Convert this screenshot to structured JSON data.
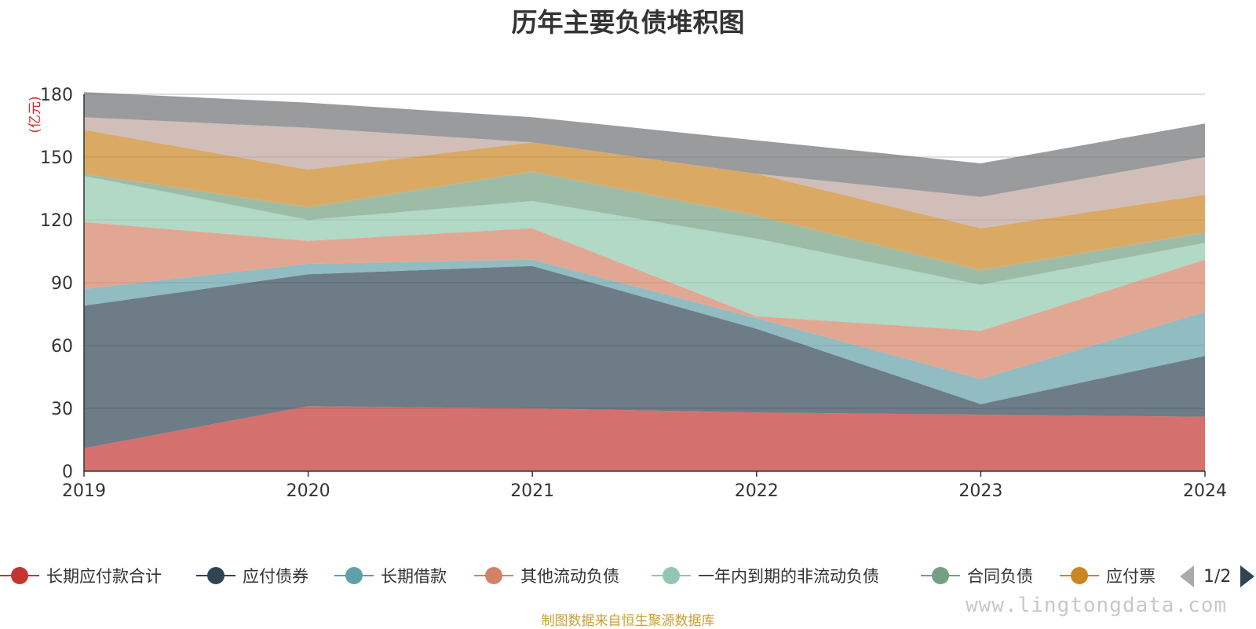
{
  "chart_data": {
    "type": "area",
    "title": "历年主要负债堆积图",
    "unit": "(亿元)",
    "categories": [
      "2019",
      "2020",
      "2021",
      "2022",
      "2023",
      "2024"
    ],
    "ylim": [
      0,
      180
    ],
    "yticks": [
      0,
      30,
      60,
      90,
      120,
      150,
      180
    ],
    "stacked": true,
    "grid": true,
    "series": [
      {
        "name": "长期应付款合计",
        "color": "#c23531",
        "values": [
          11,
          31,
          30,
          28,
          27,
          26
        ]
      },
      {
        "name": "应付债券",
        "color": "#2f4554",
        "values": [
          68,
          63,
          68,
          40,
          5,
          29
        ]
      },
      {
        "name": "长期借款",
        "color": "#61a0a8",
        "values": [
          8,
          5,
          3,
          5,
          12,
          21
        ]
      },
      {
        "name": "其他流动负债",
        "color": "#d48265",
        "values": [
          32,
          11,
          15,
          1,
          23,
          25
        ]
      },
      {
        "name": "一年内到期的非流动负债",
        "color": "#91c7ae",
        "values": [
          22,
          10,
          13,
          37,
          22,
          8
        ]
      },
      {
        "name": "合同负债",
        "color": "#749f83",
        "values": [
          1,
          6,
          14,
          11,
          7,
          5
        ]
      },
      {
        "name": "应付票",
        "color": "#ca8622",
        "values": [
          21,
          18,
          14,
          20,
          20,
          18
        ]
      },
      {
        "name": "",
        "color": "#bda29a",
        "values": [
          6,
          20,
          0,
          0,
          15,
          18
        ]
      },
      {
        "name": "",
        "color": "#6e7074",
        "values": [
          12,
          12,
          12,
          16,
          16,
          16
        ]
      }
    ]
  },
  "legend": {
    "page_text": "1/2",
    "prev_icon": "triangle-left-icon",
    "next_icon": "triangle-right-icon"
  },
  "watermark": "www.lingtongdata.com",
  "source_note": "制图数据来自恒生聚源数据库"
}
